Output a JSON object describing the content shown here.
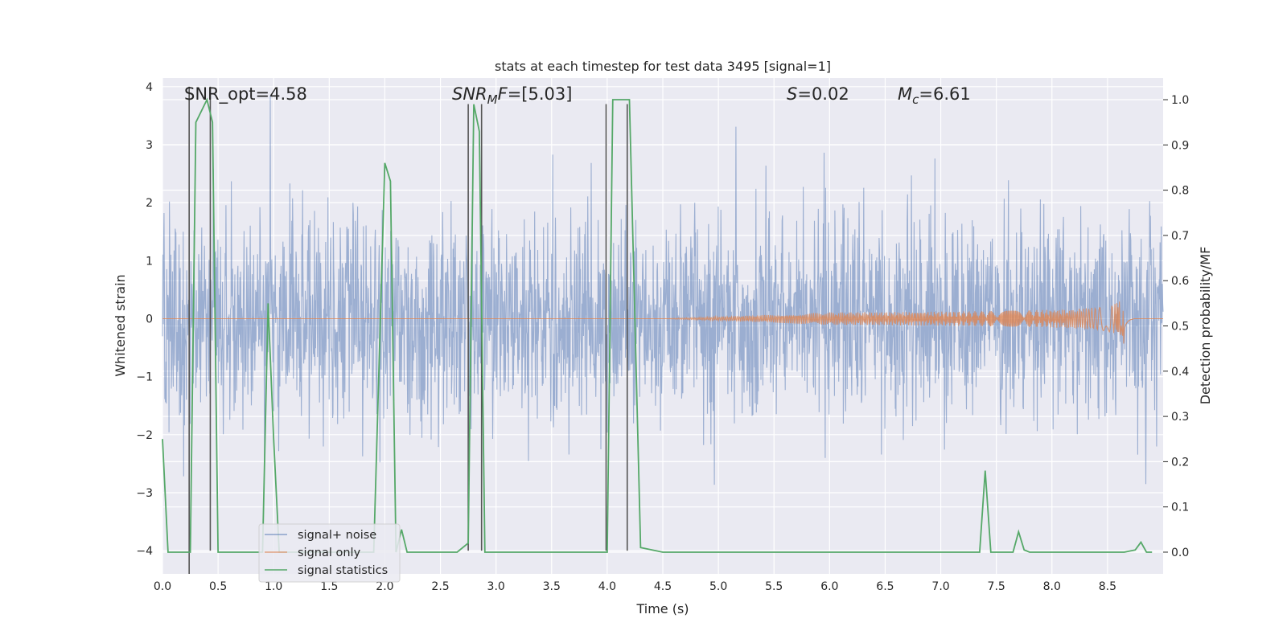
{
  "chart_data": {
    "type": "line",
    "title": "stats at each timestep for test data 3495 [signal=1]",
    "xlabel": "Time (s)",
    "ylabel_left": "Whitened strain",
    "ylabel_right": "Detection probability/MF",
    "xlim": [
      0.0,
      9.0
    ],
    "ylim_left": [
      -4.4,
      4.15
    ],
    "ylim_right": [
      -0.048,
      1.048
    ],
    "x_ticks": [
      "0.0",
      "0.5",
      "1.0",
      "1.5",
      "2.0",
      "2.5",
      "3.0",
      "3.5",
      "4.0",
      "4.5",
      "5.0",
      "5.5",
      "6.0",
      "6.5",
      "7.0",
      "7.5",
      "8.0",
      "8.5"
    ],
    "y_left_ticks": [
      "4",
      "3",
      "2",
      "1",
      "0",
      "−1",
      "−2",
      "−3",
      "−4"
    ],
    "y_right_ticks": [
      "1.0",
      "0.9",
      "0.8",
      "0.7",
      "0.6",
      "0.5",
      "0.4",
      "0.3",
      "0.2",
      "0.1",
      "0.0"
    ],
    "grid": true,
    "legend_position": "lower-left",
    "annotations": {
      "snr_opt": "SNR_opt=4.58",
      "snr_mf_main": "SNR",
      "snr_mf_sub": "M",
      "snr_mf_rest": "F=[5.03]",
      "s_var": "S",
      "s_val": "=0.02",
      "mc_var": "M",
      "mc_sub": "c",
      "mc_val": "=6.61"
    },
    "colors": {
      "background": "#eaeaf2",
      "grid": "#ffffff",
      "signal_noise": "#4c72b0",
      "signal_only": "#dd8452",
      "signal_statistics": "#55a868",
      "vertical_lines": "#555555"
    },
    "series": [
      {
        "name": "signal+ noise",
        "axis": "left",
        "style": "dense noise trace, amplitude ~±2.8 with spikes to ±3.8"
      },
      {
        "name": "signal only",
        "axis": "left",
        "chirp_start": 4.5,
        "chirp_peak": 8.65,
        "peak_amplitude": 0.55,
        "style": "chirp growing toward merger"
      },
      {
        "name": "signal statistics",
        "axis": "right",
        "x": [
          0.0,
          0.05,
          0.1,
          0.2,
          0.25,
          0.3,
          0.4,
          0.45,
          0.5,
          0.8,
          0.9,
          0.95,
          1.0,
          1.05,
          1.2,
          1.8,
          1.9,
          2.0,
          2.05,
          2.1,
          2.15,
          2.2,
          2.5,
          2.65,
          2.75,
          2.8,
          2.85,
          2.9,
          2.95,
          3.2,
          3.95,
          4.0,
          4.05,
          4.2,
          4.3,
          4.5,
          7.3,
          7.35,
          7.4,
          7.45,
          7.6,
          7.65,
          7.7,
          7.75,
          7.8,
          8.65,
          8.75,
          8.8,
          8.85,
          8.9
        ],
        "values": [
          0.25,
          0.0,
          0.0,
          0.0,
          0.0,
          0.95,
          1.0,
          0.95,
          0.0,
          0.0,
          0.0,
          0.55,
          0.25,
          0.0,
          0.0,
          0.0,
          0.0,
          0.86,
          0.82,
          0.0,
          0.05,
          0.0,
          0.0,
          0.0,
          0.02,
          0.99,
          0.93,
          0.0,
          0.0,
          0.0,
          0.0,
          0.0,
          1.0,
          1.0,
          0.01,
          0.0,
          0.0,
          0.0,
          0.18,
          0.0,
          0.0,
          0.0,
          0.045,
          0.005,
          0.0,
          0.0,
          0.005,
          0.022,
          0.0,
          0.0
        ]
      }
    ],
    "vertical_markers": [
      {
        "x": 0.24,
        "ymin": -4.4,
        "ymax": 4.0
      },
      {
        "x": 0.43,
        "ymin": -4.0,
        "ymax": 4.0
      },
      {
        "x": 2.75,
        "ymin": -4.0,
        "ymax": 3.7
      },
      {
        "x": 2.87,
        "ymin": -4.0,
        "ymax": 3.7
      },
      {
        "x": 3.99,
        "ymin": -4.0,
        "ymax": 3.7
      },
      {
        "x": 4.18,
        "ymin": -4.0,
        "ymax": 3.7
      }
    ]
  },
  "legend": {
    "items": [
      {
        "label": "signal+ noise",
        "color": "#4c72b0"
      },
      {
        "label": "signal only",
        "color": "#dd8452"
      },
      {
        "label": "signal statistics",
        "color": "#55a868"
      }
    ]
  }
}
